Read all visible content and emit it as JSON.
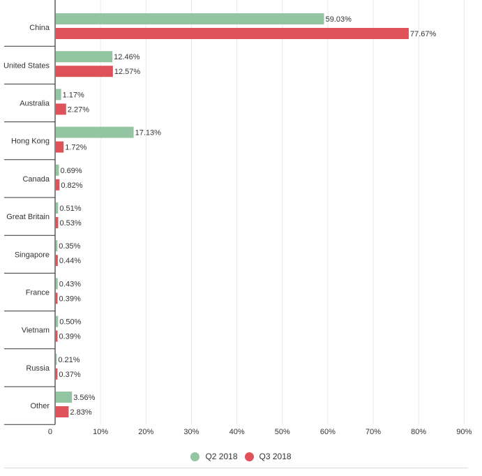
{
  "colors": {
    "q2": "#93c5a3",
    "q3": "#e0525a",
    "grid": "#e8e8e8",
    "axis": "#333333",
    "text": "#333333"
  },
  "legend": {
    "q2_label": "Q2 2018",
    "q3_label": "Q3 2018"
  },
  "chart_data": {
    "type": "bar",
    "orientation": "horizontal",
    "categories": [
      "China",
      "United States",
      "Australia",
      "Hong Kong",
      "Canada",
      "Great Britain",
      "Singapore",
      "France",
      "Vietnam",
      "Russia",
      "Other"
    ],
    "series": [
      {
        "name": "Q2 2018",
        "values": [
          59.03,
          12.46,
          1.17,
          17.13,
          0.69,
          0.51,
          0.35,
          0.43,
          0.5,
          0.21,
          3.56
        ],
        "labels": [
          "59.03%",
          "12.46%",
          "1.17%",
          "17.13%",
          "0.69%",
          "0.51%",
          "0.35%",
          "0.43%",
          "0.50%",
          "0.21%",
          "3.56%"
        ]
      },
      {
        "name": "Q3 2018",
        "values": [
          77.67,
          12.57,
          2.27,
          1.72,
          0.82,
          0.53,
          0.44,
          0.39,
          0.39,
          0.37,
          2.83
        ],
        "labels": [
          "77.67%",
          "12.57%",
          "2.27%",
          "1.72%",
          "0.82%",
          "0.53%",
          "0.44%",
          "0.39%",
          "0.39%",
          "0.37%",
          "2.83%"
        ]
      }
    ],
    "xlim": [
      0,
      90
    ],
    "xticks": [
      0,
      10,
      20,
      30,
      40,
      50,
      60,
      70,
      80,
      90
    ],
    "xtick_labels": [
      "0",
      "10%",
      "20%",
      "30%",
      "40%",
      "50%",
      "60%",
      "70%",
      "80%",
      "90%"
    ],
    "grid": true,
    "legend_position": "bottom-center",
    "title": "",
    "xlabel": "",
    "ylabel": ""
  }
}
